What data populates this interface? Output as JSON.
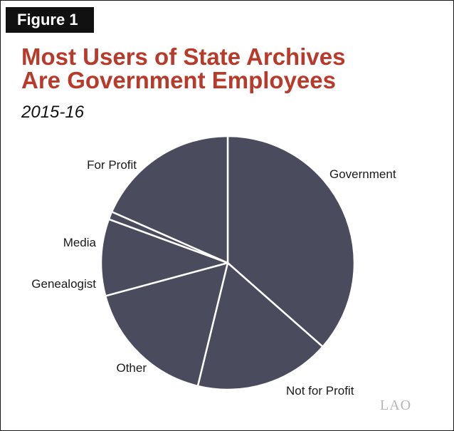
{
  "figure_label": "Figure 1",
  "title_line1": "Most Users of State Archives",
  "title_line2": "Are Government Employees",
  "subtitle": "2015-16",
  "logo_text": "LAO",
  "chart_data": {
    "type": "pie",
    "title": "Most Users of State Archives Are Government Employees",
    "subtitle": "2015-16",
    "start_angle_deg": 0,
    "direction": "clockwise",
    "slice_color": "#4b4b5e",
    "edge_color": "#ffffff",
    "slices": [
      {
        "label": "Government",
        "value": 36.5
      },
      {
        "label": "Not for Profit",
        "value": 17.3
      },
      {
        "label": "Other",
        "value": 17.0
      },
      {
        "label": "Genealogist",
        "value": 9.8
      },
      {
        "label": "Media",
        "value": 1.0
      },
      {
        "label": "For Profit",
        "value": 18.4
      }
    ]
  }
}
